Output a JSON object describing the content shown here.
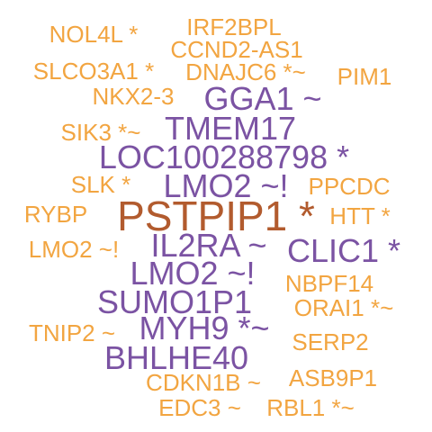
{
  "colors": {
    "orange": "#F2A541",
    "purple": "#7B53A3",
    "brown": "#B25B2E"
  },
  "words": [
    {
      "text": "NOL4L *",
      "color": "orange"
    },
    {
      "text": "IRF2BPL",
      "color": "orange"
    },
    {
      "text": "CCND2-AS1",
      "color": "orange"
    },
    {
      "text": "SLCO3A1 *",
      "color": "orange"
    },
    {
      "text": "DNAJC6 *~",
      "color": "orange"
    },
    {
      "text": "PIM1",
      "color": "orange"
    },
    {
      "text": "NKX2-3",
      "color": "orange"
    },
    {
      "text": "GGA1 ~",
      "color": "purple"
    },
    {
      "text": "SIK3 *~",
      "color": "orange"
    },
    {
      "text": "TMEM17",
      "color": "purple"
    },
    {
      "text": "LOC100288798 *",
      "color": "purple"
    },
    {
      "text": "SLK *",
      "color": "orange"
    },
    {
      "text": "LMO2 ~!",
      "color": "purple"
    },
    {
      "text": "PPCDC",
      "color": "orange"
    },
    {
      "text": "RYBP",
      "color": "orange"
    },
    {
      "text": "PSTPIP1 *",
      "color": "brown"
    },
    {
      "text": "HTT *",
      "color": "orange"
    },
    {
      "text": "LMO2 ~!",
      "color": "orange"
    },
    {
      "text": "IL2RA ~",
      "color": "purple"
    },
    {
      "text": "CLIC1 *",
      "color": "purple"
    },
    {
      "text": "LMO2 ~!",
      "color": "purple"
    },
    {
      "text": "NBPF14",
      "color": "orange"
    },
    {
      "text": "SUMO1P1",
      "color": "purple"
    },
    {
      "text": "ORAI1 *~",
      "color": "orange"
    },
    {
      "text": "TNIP2 ~",
      "color": "orange"
    },
    {
      "text": "MYH9 *~",
      "color": "purple"
    },
    {
      "text": "SERP2",
      "color": "orange"
    },
    {
      "text": "BHLHE40",
      "color": "purple"
    },
    {
      "text": "CDKN1B ~",
      "color": "orange"
    },
    {
      "text": "ASB9P1",
      "color": "orange"
    },
    {
      "text": "EDC3 ~",
      "color": "orange"
    },
    {
      "text": "RBL1 *~",
      "color": "orange"
    }
  ]
}
